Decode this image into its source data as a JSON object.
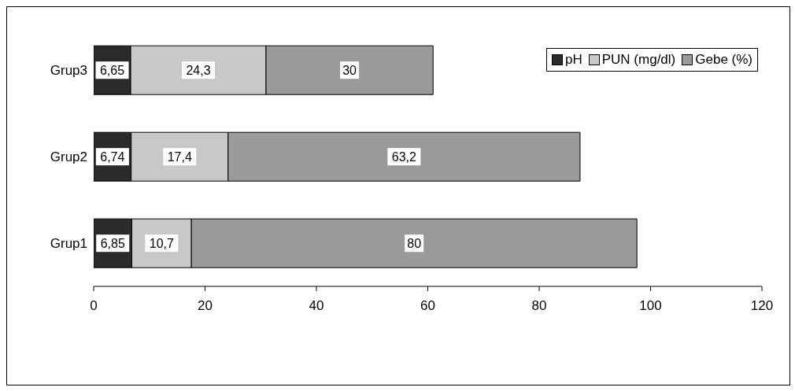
{
  "chart_data": {
    "type": "bar",
    "orientation": "horizontal",
    "stacked": true,
    "categories": [
      "Grup3",
      "Grup2",
      "Grup1"
    ],
    "series": [
      {
        "name": "pH",
        "color": "#2b2b2b",
        "values": [
          6.65,
          6.74,
          6.85
        ],
        "value_labels": [
          "6,65",
          "6,74",
          "6,85"
        ]
      },
      {
        "name": "PUN (mg/dl)",
        "color": "#c8c8c8",
        "values": [
          24.3,
          17.4,
          10.7
        ],
        "value_labels": [
          "24,3",
          "17,4",
          "10,7"
        ]
      },
      {
        "name": "Gebe (%)",
        "color": "#9a9a9a",
        "values": [
          30,
          63.2,
          80
        ],
        "value_labels": [
          "30",
          "63,2",
          "80"
        ]
      }
    ],
    "xlim": [
      0,
      120
    ],
    "xticks": [
      0,
      20,
      40,
      60,
      80,
      100,
      120
    ],
    "grid": false,
    "legend": "top right"
  }
}
